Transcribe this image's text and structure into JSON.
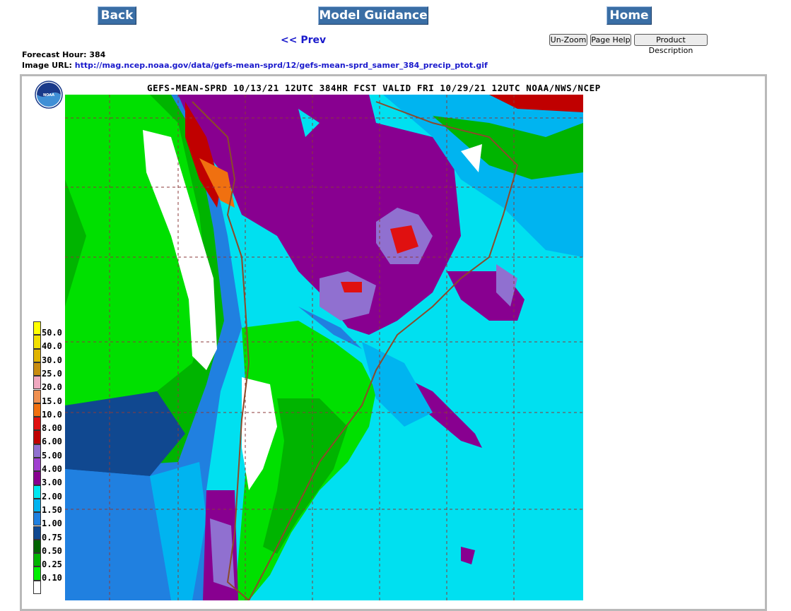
{
  "nav": {
    "back": "Back",
    "model_guidance": "Model Guidance",
    "home": "Home",
    "prev": "<< Prev"
  },
  "toolbar": {
    "unzoom": "Un-Zoom",
    "page_help": "Page Help",
    "product_description": "Product Description"
  },
  "info": {
    "forecast_hour_label": "Forecast Hour:",
    "forecast_hour": "384",
    "image_url_label": "Image URL:",
    "image_url": "http://mag.ncep.noaa.gov/data/gefs-mean-sprd/12/gefs-mean-sprd_samer_384_precip_ptot.gif"
  },
  "map": {
    "title": "GEFS-MEAN-SPRD 10/13/21 12UTC 384HR FCST VALID FRI 10/29/21 12UTC NOAA/NWS/NCEP",
    "logo_text": "NOAA"
  },
  "legend": [
    {
      "label": "50.0",
      "color": "#ffff00"
    },
    {
      "label": "40.0",
      "color": "#f2e000"
    },
    {
      "label": "30.0",
      "color": "#e0b400"
    },
    {
      "label": "25.0",
      "color": "#c88c10"
    },
    {
      "label": "20.0",
      "color": "#f0a8c0"
    },
    {
      "label": "15.0",
      "color": "#f09050"
    },
    {
      "label": "10.0",
      "color": "#f07010"
    },
    {
      "label": "8.00",
      "color": "#e01010"
    },
    {
      "label": "6.00",
      "color": "#c00000"
    },
    {
      "label": "5.00",
      "color": "#9070d0"
    },
    {
      "label": "4.00",
      "color": "#a040d0"
    },
    {
      "label": "3.00",
      "color": "#880090"
    },
    {
      "label": "2.00",
      "color": "#00e8f0"
    },
    {
      "label": "1.50",
      "color": "#00b4f0"
    },
    {
      "label": "1.00",
      "color": "#2080e0"
    },
    {
      "label": "0.75",
      "color": "#104890"
    },
    {
      "label": "0.50",
      "color": "#006400"
    },
    {
      "label": "0.25",
      "color": "#00b400"
    },
    {
      "label": "0.10",
      "color": "#00f000"
    },
    {
      "label": "",
      "color": "#ffffff"
    }
  ]
}
